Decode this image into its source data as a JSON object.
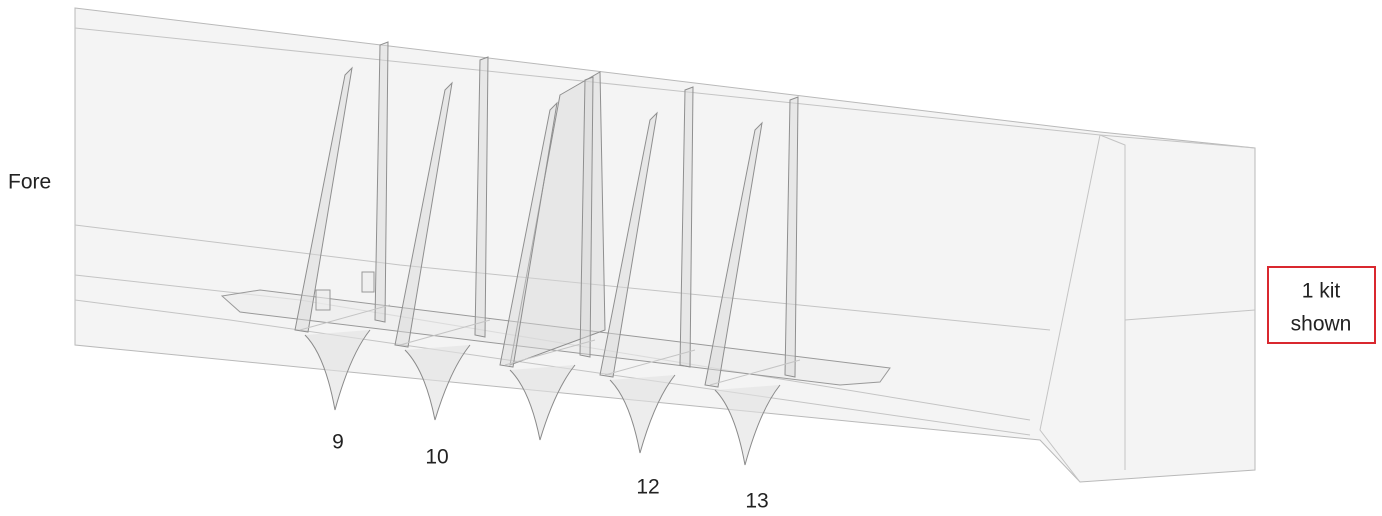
{
  "labels": {
    "fore": "Fore",
    "frames": [
      "9",
      "10",
      "12",
      "13"
    ]
  },
  "callout": {
    "line1": "1 kit",
    "line2": "shown"
  }
}
